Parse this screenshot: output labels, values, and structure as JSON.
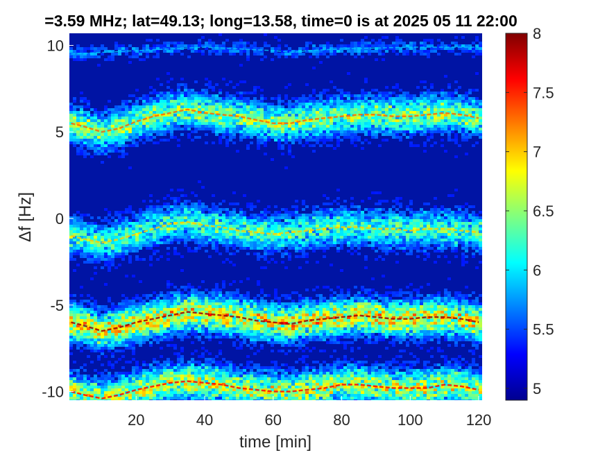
{
  "chart_data": {
    "type": "heatmap",
    "title": "=3.59 MHz;  lat=49.13; long=13.58, time=0 is at 2025 05 11 22:00",
    "xlabel": "time [min]",
    "ylabel": "Δf [Hz]",
    "xlim": [
      0.5,
      121
    ],
    "ylim": [
      -10.5,
      10.7
    ],
    "xticks": [
      20,
      40,
      60,
      80,
      100,
      120
    ],
    "xtick_labels": [
      "20",
      "40",
      "60",
      "80",
      "100",
      "120"
    ],
    "yticks": [
      -10,
      -5,
      0,
      5,
      10
    ],
    "ytick_labels": [
      "-10",
      "-5",
      "0",
      "5",
      "10"
    ],
    "colorbar": {
      "colormap": "jet",
      "range": [
        4.9,
        8.0
      ],
      "ticks": [
        5,
        5.5,
        6,
        6.5,
        7,
        7.5,
        8
      ],
      "tick_labels": [
        "5",
        "5.5",
        "6",
        "6.5",
        "7",
        "7.5",
        "8"
      ]
    },
    "background_level": 5.1,
    "series": [
      {
        "x": [
          1,
          5,
          10,
          15,
          20,
          25,
          30,
          35,
          40,
          45,
          50,
          55,
          60,
          65,
          70,
          75,
          80,
          85,
          90,
          95,
          100,
          105,
          110,
          115,
          120
        ],
        "y": [
          5.5,
          5.3,
          5.0,
          5.2,
          5.6,
          5.9,
          6.1,
          6.3,
          6.1,
          6.0,
          5.9,
          5.7,
          5.5,
          5.5,
          5.7,
          5.8,
          5.9,
          6.0,
          6.0,
          5.9,
          5.9,
          6.0,
          6.1,
          6.0,
          5.8
        ],
        "peak": 7.3
      },
      {
        "x": [
          1,
          5,
          10,
          15,
          20,
          25,
          30,
          35,
          40,
          45,
          50,
          55,
          60,
          65,
          70,
          75,
          80,
          85,
          90,
          95,
          100,
          105,
          110,
          115,
          120
        ],
        "y": [
          -1.0,
          -1.2,
          -1.4,
          -1.2,
          -0.9,
          -0.6,
          -0.3,
          -0.2,
          -0.4,
          -0.5,
          -0.7,
          -0.8,
          -0.9,
          -0.8,
          -0.7,
          -0.6,
          -0.5,
          -0.5,
          -0.6,
          -0.6,
          -0.7,
          -0.6,
          -0.6,
          -0.7,
          -0.8
        ],
        "peak": 7.0
      },
      {
        "x": [
          1,
          5,
          10,
          15,
          20,
          25,
          30,
          35,
          40,
          45,
          50,
          55,
          60,
          65,
          70,
          75,
          80,
          85,
          90,
          95,
          100,
          105,
          110,
          115,
          120
        ],
        "y": [
          -6.0,
          -6.2,
          -6.5,
          -6.3,
          -6.0,
          -5.8,
          -5.6,
          -5.4,
          -5.5,
          -5.6,
          -5.7,
          -5.9,
          -6.0,
          -6.1,
          -5.9,
          -5.8,
          -5.7,
          -5.6,
          -5.7,
          -5.8,
          -5.8,
          -5.7,
          -5.7,
          -5.8,
          -6.0
        ],
        "peak": 7.9
      },
      {
        "x": [
          1,
          5,
          10,
          15,
          20,
          25,
          30,
          35,
          40,
          45,
          50,
          55,
          60,
          65,
          70,
          75,
          80,
          85,
          90,
          95,
          100,
          105,
          110,
          115,
          120
        ],
        "y": [
          -10.0,
          -10.2,
          -10.4,
          -10.2,
          -9.9,
          -9.7,
          -9.5,
          -9.4,
          -9.5,
          -9.6,
          -9.8,
          -9.9,
          -10.0,
          -10.0,
          -9.9,
          -9.8,
          -9.6,
          -9.6,
          -9.7,
          -9.8,
          -9.8,
          -9.8,
          -9.6,
          -9.7,
          -9.9
        ],
        "peak": 7.6
      },
      {
        "x": [
          1,
          20,
          40,
          60,
          66,
          70,
          80,
          100,
          120
        ],
        "y": [
          9.5,
          9.7,
          9.9,
          9.7,
          9.6,
          9.7,
          9.8,
          9.9,
          9.9
        ],
        "peak": 5.9
      }
    ]
  }
}
